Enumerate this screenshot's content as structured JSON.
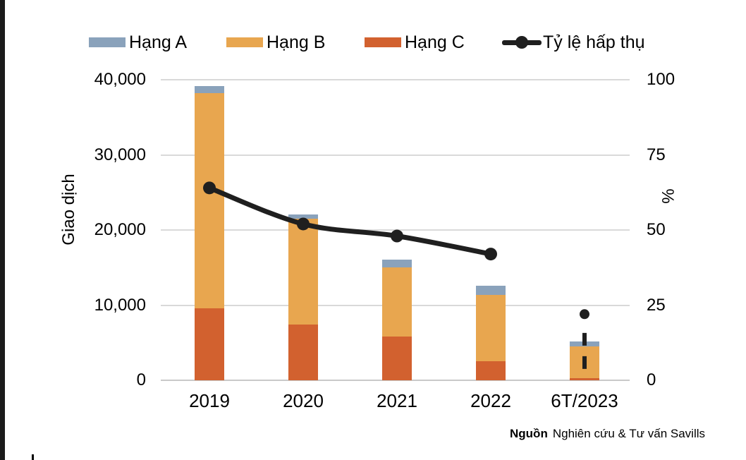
{
  "legend": {
    "items": [
      {
        "label": "Hạng A",
        "marker": "rect-swatch",
        "color": "#8AA2BB"
      },
      {
        "label": "Hạng B",
        "marker": "rect-swatch",
        "color": "#E8A64F"
      },
      {
        "label": "Hạng C",
        "marker": "rect-swatch",
        "color": "#D2612F"
      },
      {
        "label": "Tỷ lệ hấp thụ",
        "marker": "line-with-dot",
        "color": "#1F1F1F"
      }
    ]
  },
  "chart_data": {
    "type": "bar",
    "subtype": "stacked-bars-with-secondary-axis-line",
    "categories": [
      "2019",
      "2020",
      "2021",
      "2022",
      "6T/2023"
    ],
    "series": [
      {
        "name": "Hạng C",
        "type": "bar",
        "axis": "left",
        "color": "#D2612F",
        "values": [
          9600,
          7400,
          5800,
          2500,
          300
        ]
      },
      {
        "name": "Hạng B",
        "type": "bar",
        "axis": "left",
        "color": "#E8A64F",
        "values": [
          28600,
          14100,
          9200,
          8900,
          4200
        ]
      },
      {
        "name": "Hạng A",
        "type": "bar",
        "axis": "left",
        "color": "#8AA2BB",
        "values": [
          1000,
          600,
          1100,
          1200,
          700
        ]
      },
      {
        "name": "Tỷ lệ hấp thụ",
        "type": "line",
        "axis": "right",
        "color": "#1F1F1F",
        "smooth": true,
        "last_point_isolated": true,
        "values": [
          64,
          52,
          48,
          42,
          22
        ]
      }
    ],
    "stacked": true,
    "left_axis": {
      "title": "Giao dịch",
      "min": 0,
      "max": 40000,
      "ticks": [
        "40,000",
        "30,000",
        "20,000",
        "10,000",
        "0"
      ]
    },
    "right_axis": {
      "title": "%",
      "min": 0,
      "max": 100,
      "ticks": [
        "100",
        "75",
        "50",
        "25",
        "0"
      ]
    },
    "grid": "horizontal",
    "legend_position": "top",
    "extra_marks": {
      "dashed_vertical_marker": {
        "category": "6T/2023",
        "axis": "left",
        "from_value": 6300,
        "to_value": 1500,
        "color": "#1F1F1F"
      }
    }
  },
  "source": {
    "prefix_bold": "Nguồn",
    "text": "Nghiên cứu & Tư vấn Savills"
  }
}
